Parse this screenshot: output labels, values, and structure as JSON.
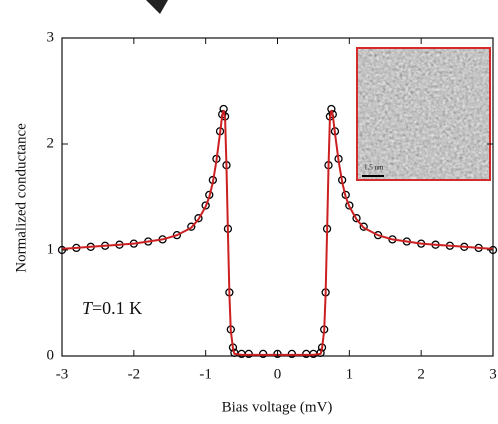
{
  "chart_data": {
    "type": "scatter",
    "xlabel": "Bias voltage (mV)",
    "ylabel": "Normalized conductance",
    "annotation_italic": "T",
    "annotation": "=0.1 K",
    "inset_label": "1.5 nm",
    "xlim": [
      -3,
      3
    ],
    "ylim": [
      0,
      3
    ],
    "xticks": [
      -3,
      -2,
      -1,
      0,
      1,
      2,
      3
    ],
    "yticks": [
      0,
      1,
      2,
      3
    ],
    "x": [
      -3.0,
      -2.8,
      -2.6,
      -2.4,
      -2.2,
      -2.0,
      -1.8,
      -1.6,
      -1.4,
      -1.2,
      -1.1,
      -1.0,
      -0.95,
      -0.9,
      -0.85,
      -0.8,
      -0.77,
      -0.75,
      -0.73,
      -0.71,
      -0.69,
      -0.67,
      -0.65,
      -0.62,
      -0.6,
      -0.5,
      -0.4,
      -0.2,
      0,
      0.2,
      0.4,
      0.5,
      0.6,
      0.62,
      0.65,
      0.67,
      0.69,
      0.71,
      0.73,
      0.75,
      0.77,
      0.8,
      0.85,
      0.9,
      0.95,
      1.0,
      1.1,
      1.2,
      1.4,
      1.6,
      1.8,
      2.0,
      2.2,
      2.4,
      2.6,
      2.8,
      3.0
    ],
    "series": [
      {
        "color": "#000000",
        "marker": "circle",
        "values": [
          1.0,
          1.02,
          1.03,
          1.04,
          1.05,
          1.06,
          1.08,
          1.1,
          1.14,
          1.22,
          1.3,
          1.42,
          1.52,
          1.66,
          1.86,
          2.12,
          2.28,
          2.33,
          2.26,
          1.8,
          1.2,
          0.6,
          0.25,
          0.08,
          0.03,
          0.02,
          0.02,
          0.02,
          0.02,
          0.02,
          0.02,
          0.02,
          0.03,
          0.08,
          0.25,
          0.6,
          1.2,
          1.8,
          2.26,
          2.33,
          2.28,
          2.12,
          1.86,
          1.66,
          1.52,
          1.42,
          1.3,
          1.22,
          1.14,
          1.1,
          1.08,
          1.06,
          1.05,
          1.04,
          1.03,
          1.02,
          1.0
        ]
      },
      {
        "color": "#cc1f1f",
        "marker": "line",
        "values": [
          1.01,
          1.02,
          1.03,
          1.04,
          1.05,
          1.06,
          1.08,
          1.1,
          1.14,
          1.21,
          1.29,
          1.41,
          1.5,
          1.64,
          1.84,
          2.1,
          2.27,
          2.32,
          2.24,
          1.78,
          1.18,
          0.58,
          0.24,
          0.07,
          0.02,
          0.01,
          0.01,
          0.01,
          0.01,
          0.01,
          0.01,
          0.01,
          0.02,
          0.07,
          0.24,
          0.58,
          1.18,
          1.78,
          2.24,
          2.32,
          2.27,
          2.1,
          1.84,
          1.64,
          1.5,
          1.41,
          1.29,
          1.21,
          1.14,
          1.1,
          1.08,
          1.06,
          1.05,
          1.04,
          1.03,
          1.02,
          1.01
        ]
      }
    ]
  }
}
